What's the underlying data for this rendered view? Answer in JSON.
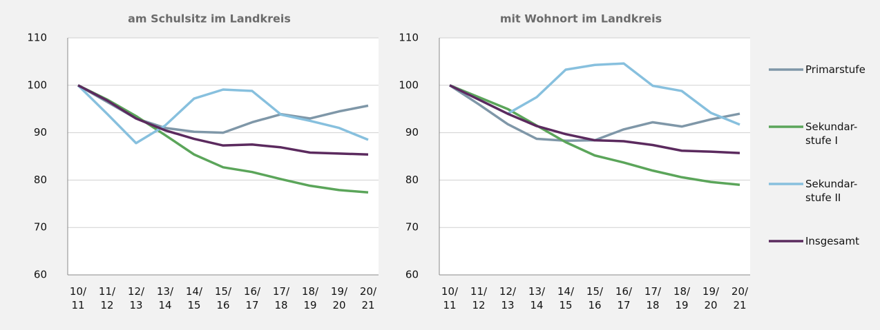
{
  "chart_data": [
    {
      "type": "line",
      "title": "am Schulsitz im Landkreis",
      "categories": [
        "10/11",
        "11/12",
        "12/13",
        "13/14",
        "14/15",
        "15/16",
        "16/17",
        "17/18",
        "18/19",
        "19/20",
        "20/21"
      ],
      "series": [
        {
          "name": "Primarstufe",
          "color": "#7f97a8",
          "values": [
            100,
            96.5,
            93,
            91,
            90.2,
            90,
            92.2,
            93.9,
            93,
            94.5,
            95.7
          ]
        },
        {
          "name": "Sekundar-stufe I",
          "color": "#5ba55a",
          "values": [
            100,
            97,
            93.5,
            89.5,
            85.4,
            82.7,
            81.7,
            80.2,
            78.8,
            77.9,
            77.4
          ]
        },
        {
          "name": "Sekundar-stufe II",
          "color": "#87c0de",
          "values": [
            100,
            94,
            87.8,
            91.5,
            97.2,
            99.1,
            98.8,
            93.8,
            92.5,
            91,
            88.5
          ]
        },
        {
          "name": "Insgesamt",
          "color": "#5b2a5e",
          "values": [
            100,
            96.8,
            93,
            90.5,
            88.7,
            87.3,
            87.5,
            86.9,
            85.8,
            85.6,
            85.4
          ]
        }
      ],
      "ylim": [
        60,
        110
      ],
      "yticks": [
        60,
        70,
        80,
        90,
        100,
        110
      ],
      "grid": true,
      "legend": "right"
    },
    {
      "type": "line",
      "title": "mit Wohnort im Landkreis",
      "categories": [
        "10/11",
        "11/12",
        "12/13",
        "13/14",
        "14/15",
        "15/16",
        "16/17",
        "17/18",
        "18/19",
        "19/20",
        "20/21"
      ],
      "series": [
        {
          "name": "Primarstufe",
          "color": "#7f97a8",
          "values": [
            100,
            96,
            91.8,
            88.7,
            88.3,
            88.4,
            90.7,
            92.2,
            91.3,
            92.8,
            94
          ]
        },
        {
          "name": "Sekundar-stufe I",
          "color": "#5ba55a",
          "values": [
            100,
            97.5,
            95,
            91.5,
            88,
            85.2,
            83.7,
            82,
            80.6,
            79.6,
            79
          ]
        },
        {
          "name": "Sekundar-stufe II",
          "color": "#87c0de",
          "values": [
            100,
            97,
            94,
            97.5,
            103.3,
            104.3,
            104.6,
            99.9,
            98.8,
            94.2,
            91.7
          ]
        },
        {
          "name": "Insgesamt",
          "color": "#5b2a5e",
          "values": [
            100,
            97,
            94,
            91.4,
            89.7,
            88.4,
            88.2,
            87.4,
            86.2,
            86,
            85.7
          ]
        }
      ],
      "ylim": [
        60,
        110
      ],
      "yticks": [
        60,
        70,
        80,
        90,
        100,
        110
      ],
      "grid": true
    }
  ]
}
